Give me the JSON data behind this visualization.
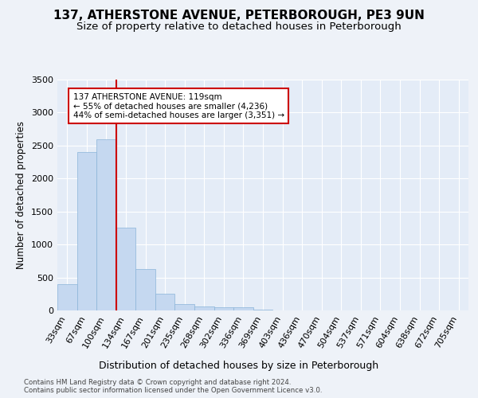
{
  "title": "137, ATHERSTONE AVENUE, PETERBOROUGH, PE3 9UN",
  "subtitle": "Size of property relative to detached houses in Peterborough",
  "xlabel": "Distribution of detached houses by size in Peterborough",
  "ylabel": "Number of detached properties",
  "categories": [
    "33sqm",
    "67sqm",
    "100sqm",
    "134sqm",
    "167sqm",
    "201sqm",
    "235sqm",
    "268sqm",
    "302sqm",
    "336sqm",
    "369sqm",
    "403sqm",
    "436sqm",
    "470sqm",
    "504sqm",
    "537sqm",
    "571sqm",
    "604sqm",
    "638sqm",
    "672sqm",
    "705sqm"
  ],
  "values": [
    400,
    2400,
    2600,
    1250,
    625,
    250,
    100,
    60,
    50,
    50,
    10,
    5,
    2,
    1,
    0,
    0,
    0,
    0,
    0,
    0,
    0
  ],
  "bar_color": "#c5d8f0",
  "bar_edge_color": "#8ab4d8",
  "vline_x_index": 2.5,
  "vline_color": "#cc0000",
  "annotation_text": "137 ATHERSTONE AVENUE: 119sqm\n← 55% of detached houses are smaller (4,236)\n44% of semi-detached houses are larger (3,351) →",
  "annotation_box_color": "#ffffff",
  "annotation_box_edge": "#cc0000",
  "footer_text": "Contains HM Land Registry data © Crown copyright and database right 2024.\nContains public sector information licensed under the Open Government Licence v3.0.",
  "ylim": [
    0,
    3500
  ],
  "background_color": "#eef2f8",
  "plot_background": "#e4ecf7",
  "grid_color": "#ffffff",
  "title_fontsize": 11,
  "subtitle_fontsize": 9.5,
  "tick_fontsize": 8,
  "ylabel_fontsize": 8.5,
  "xlabel_fontsize": 9
}
